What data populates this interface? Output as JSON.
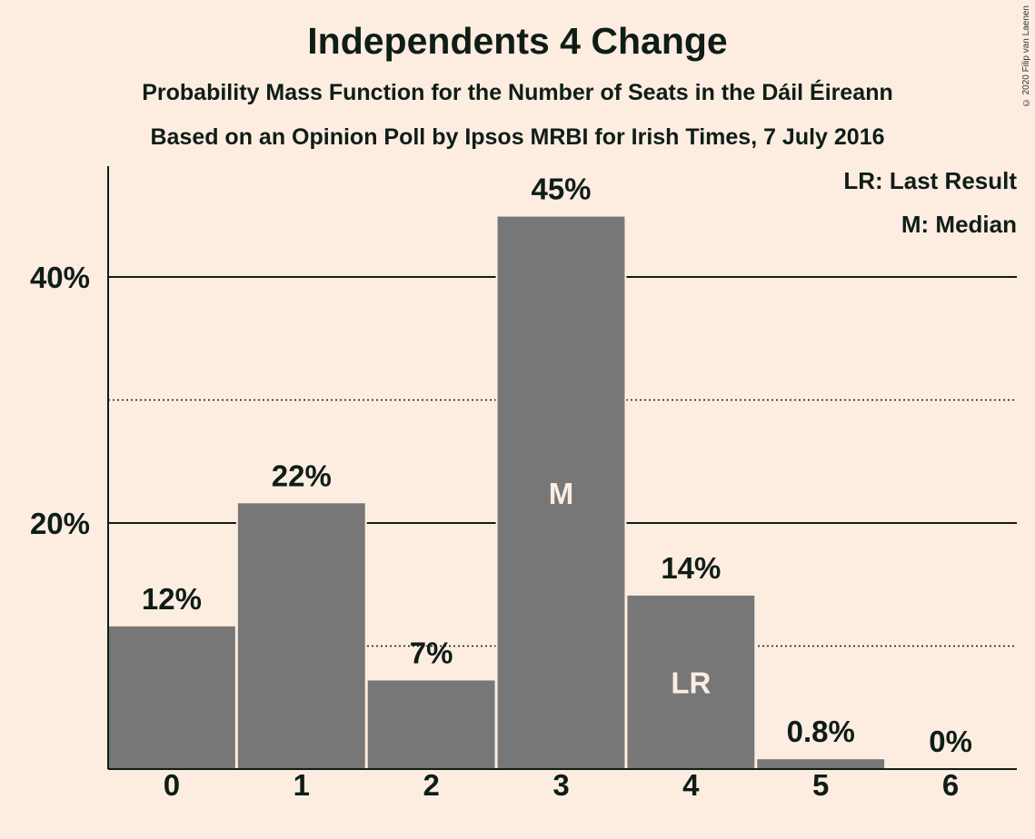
{
  "title": "Independents 4 Change",
  "subtitle1": "Probability Mass Function for the Number of Seats in the Dáil Éireann",
  "subtitle2": "Based on an Opinion Poll by Ipsos MRBI for Irish Times, 7 July 2016",
  "copyright": "© 2020 Filip van Laenen",
  "legend": {
    "last_result": "LR: Last Result",
    "median": "M: Median"
  },
  "colors": {
    "background": "#fdede1",
    "bar": "#777777",
    "text": "#0f1d17"
  },
  "chart_data": {
    "type": "bar",
    "categories": [
      "0",
      "1",
      "2",
      "3",
      "4",
      "5",
      "6"
    ],
    "values": [
      11.6,
      21.6,
      7.2,
      44.9,
      14.1,
      0.8,
      0
    ],
    "value_labels": [
      "12%",
      "22%",
      "7%",
      "45%",
      "14%",
      "0.8%",
      "0%"
    ],
    "bar_annotations": [
      "",
      "",
      "",
      "M",
      "LR",
      "",
      ""
    ],
    "ylim": [
      0,
      49
    ],
    "yticks_major": [
      20,
      40
    ],
    "ytick_labels": [
      "20%",
      "40%"
    ],
    "yticks_minor": [
      10,
      30
    ],
    "grid": true,
    "legend_position": "top-right"
  }
}
